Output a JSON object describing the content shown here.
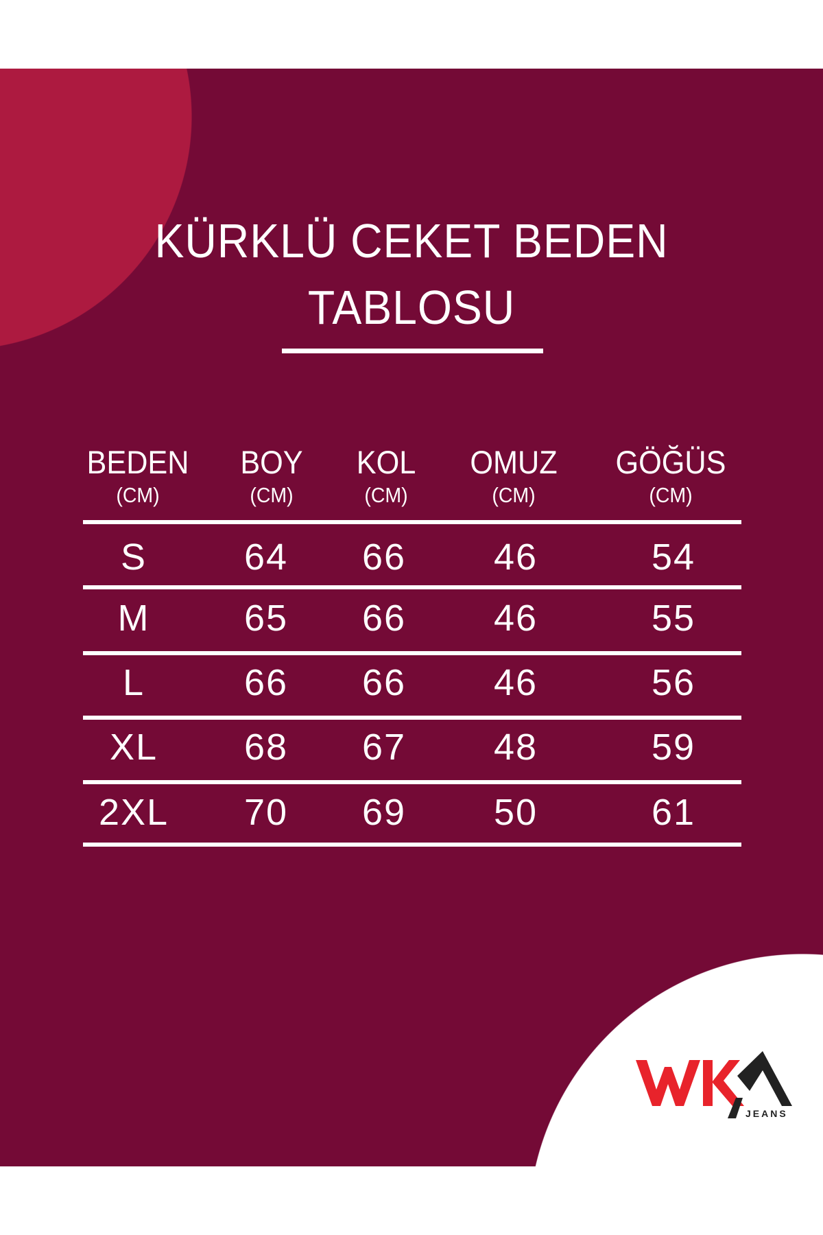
{
  "title": {
    "line1": "KÜRKLÜ CEKET BEDEN",
    "line2": "TABLOSU"
  },
  "table": {
    "headers": [
      {
        "label": "BEDEN",
        "unit": "(CM)"
      },
      {
        "label": "BOY",
        "unit": "(CM)"
      },
      {
        "label": "KOL",
        "unit": "(CM)"
      },
      {
        "label": "OMUZ",
        "unit": "(CM)"
      },
      {
        "label": "GÖĞÜS",
        "unit": "(CM)"
      }
    ],
    "rows": [
      [
        "S",
        "64",
        "66",
        "46",
        "54"
      ],
      [
        "M",
        "65",
        "66",
        "46",
        "55"
      ],
      [
        "L",
        "66",
        "66",
        "46",
        "56"
      ],
      [
        "XL",
        "68",
        "67",
        "48",
        "59"
      ],
      [
        "2XL",
        "70",
        "69",
        "50",
        "61"
      ]
    ]
  },
  "logo": {
    "brand": "WKM",
    "sub": "JEANS"
  },
  "colors": {
    "background": "#740A36",
    "accent_circle": "#AD1A40",
    "logo_red": "#E8232B",
    "logo_dark": "#222222"
  }
}
